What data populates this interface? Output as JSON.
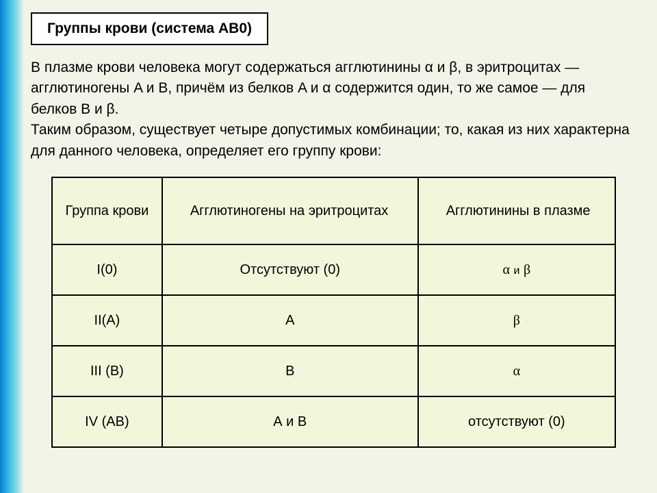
{
  "title": "Группы крови (система АВ0)",
  "paragraph": "В плазме крови человека могут содержаться агглютинины α и β, в эритроцитах — агглютиногены A и B, причём из белков A и α содержится один, то же самое — для белков B и β.\nТаким образом, существует четыре допустимых комбинации; то, какая из них характерна для данного человека, определяет его группу крови:",
  "table": {
    "headers": [
      "Группа крови",
      "Агглютиногены на эритроцитах",
      "Агглютинины в плазме"
    ],
    "rows": [
      {
        "group": "I(0)",
        "agglutinogens": "Отсутствуют (0)",
        "agglutinins_html": "<span class='serif'>α</span> <span class='small-and'>и</span> <span class='serif'>β</span>"
      },
      {
        "group": "II(A)",
        "agglutinogens": "А",
        "agglutinins_html": "<span class='serif'>β</span>"
      },
      {
        "group": "III (В)",
        "agglutinogens": "В",
        "agglutinins_html": "<span class='serif'>α</span>"
      },
      {
        "group": "IV (АВ)",
        "agglutinogens": "А и В",
        "agglutinins_html": "отсутствуют (0)"
      }
    ]
  },
  "colors": {
    "background": "#f2f4e8",
    "table_bg": "#f4f6dc",
    "border": "#000000",
    "gradient_start": "#0a7fd4",
    "gradient_mid": "#3dc0e8"
  }
}
